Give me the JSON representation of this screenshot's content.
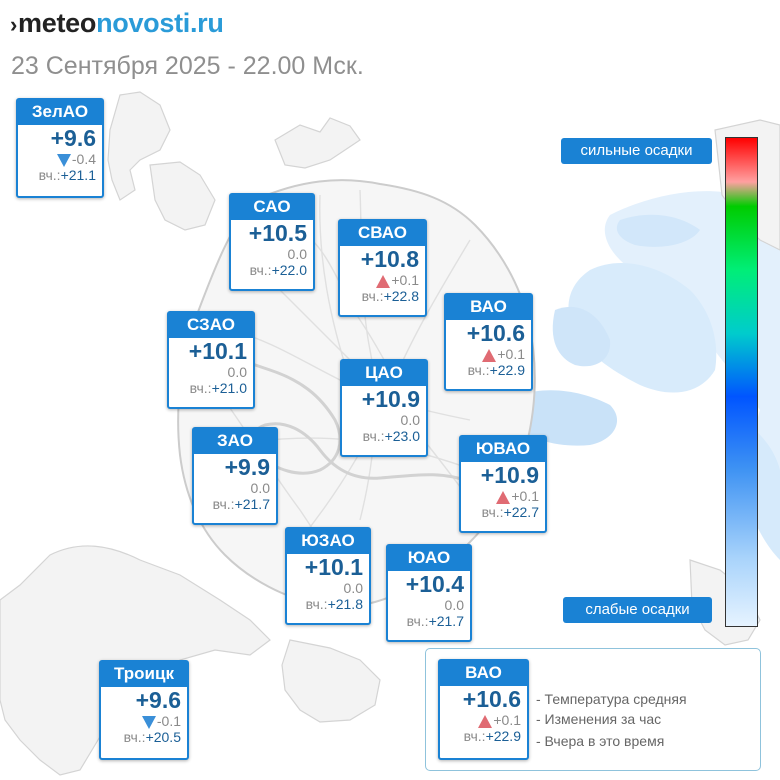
{
  "logo": {
    "mark": "›",
    "part1": "meteo",
    "part2": "novosti.ru"
  },
  "subtitle": "23 Сентября 2025 - 22.00 Мск.",
  "yesterday_label": "вч.:",
  "districts": [
    {
      "id": "zelao",
      "name": "ЗелАО",
      "temp": "+9.6",
      "change": "-0.4",
      "trend": "down",
      "yesterday": "+21.1"
    },
    {
      "id": "sao",
      "name": "САО",
      "temp": "+10.5",
      "change": "0.0",
      "trend": "none",
      "yesterday": "+22.0"
    },
    {
      "id": "svao",
      "name": "СВАО",
      "temp": "+10.8",
      "change": "+0.1",
      "trend": "up",
      "yesterday": "+22.8"
    },
    {
      "id": "vao",
      "name": "ВАО",
      "temp": "+10.6",
      "change": "+0.1",
      "trend": "up",
      "yesterday": "+22.9"
    },
    {
      "id": "szao",
      "name": "СЗАО",
      "temp": "+10.1",
      "change": "0.0",
      "trend": "none",
      "yesterday": "+21.0"
    },
    {
      "id": "cao",
      "name": "ЦАО",
      "temp": "+10.9",
      "change": "0.0",
      "trend": "none",
      "yesterday": "+23.0"
    },
    {
      "id": "zao",
      "name": "ЗАО",
      "temp": "+9.9",
      "change": "0.0",
      "trend": "none",
      "yesterday": "+21.7"
    },
    {
      "id": "yuvao",
      "name": "ЮВАО",
      "temp": "+10.9",
      "change": "+0.1",
      "trend": "up",
      "yesterday": "+22.7"
    },
    {
      "id": "yuzao",
      "name": "ЮЗАО",
      "temp": "+10.1",
      "change": "0.0",
      "trend": "none",
      "yesterday": "+21.8"
    },
    {
      "id": "yuao",
      "name": "ЮАО",
      "temp": "+10.4",
      "change": "0.0",
      "trend": "none",
      "yesterday": "+21.7"
    },
    {
      "id": "troitsk",
      "name": "Троицк",
      "temp": "+9.6",
      "change": "-0.1",
      "trend": "down",
      "yesterday": "+20.5"
    }
  ],
  "precip_scale": {
    "high_label": "сильные осадки",
    "low_label": "слабые осадки"
  },
  "legend": {
    "example": {
      "name": "ВАО",
      "temp": "+10.6",
      "change": "+0.1",
      "trend": "up",
      "yesterday": "+22.9"
    },
    "items": [
      "- Температура средняя",
      "- Изменения за час",
      "- Вчера в это время"
    ]
  },
  "colors": {
    "card_blue": "#1a82d4",
    "temp_text": "#1b5f96",
    "trend_up": "#e06b73",
    "trend_down": "#3a8fd8",
    "logo_accent": "#2a9bd8"
  }
}
